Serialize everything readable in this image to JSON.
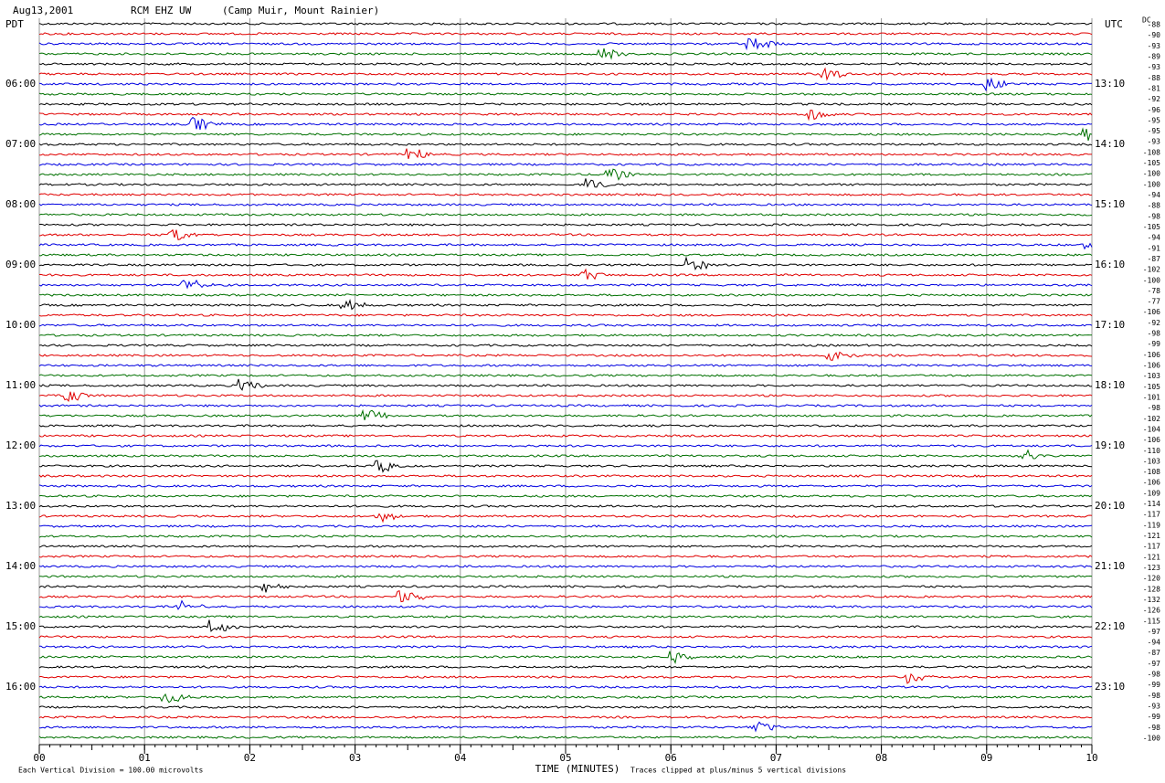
{
  "chart_data": {
    "type": "helicorder",
    "date": "Aug13,2001",
    "station": "RCM EHZ UW",
    "location": "(Camp Muir, Mount Rainier)",
    "left_zone": "PDT",
    "right_zone": "UTC",
    "dc_label": "DC",
    "pdt_times": [
      "06:00",
      "07:00",
      "08:00",
      "09:00",
      "10:00",
      "11:00",
      "12:00",
      "13:00",
      "14:00",
      "15:00",
      "16:00"
    ],
    "utc_times": [
      "13:10",
      "14:10",
      "15:10",
      "16:10",
      "17:10",
      "18:10",
      "19:10",
      "20:10",
      "21:10",
      "22:10",
      "23:10"
    ],
    "dc_offsets": [
      -88,
      -90,
      -93,
      -89,
      -93,
      -88,
      -81,
      -92,
      -96,
      -95,
      -95,
      -93,
      -108,
      -105,
      -100,
      -100,
      -94,
      -88,
      -98,
      -105,
      -94,
      -91,
      -87,
      -102,
      -100,
      -78,
      -77,
      -106,
      -92,
      -98,
      -99,
      -106,
      -106,
      -103,
      -105,
      -101,
      -98,
      -102,
      -104,
      -106,
      -110,
      -103,
      -108,
      -106,
      -109,
      -114,
      -117,
      -119,
      -121,
      -117,
      -121,
      -123,
      -120,
      -128,
      -132,
      -126,
      -115,
      -97,
      -94,
      -87,
      -97,
      -98,
      -99,
      -98,
      -93,
      -99,
      -98,
      -100
    ],
    "trace_colors": [
      "#000000",
      "#e00000",
      "#0000e0",
      "#007000"
    ],
    "xlabel": "TIME (MINUTES)",
    "xlim": [
      0,
      10
    ],
    "xticks": [
      {
        "value": 0,
        "label": "00"
      },
      {
        "value": 1,
        "label": "01"
      },
      {
        "value": 2,
        "label": "02"
      },
      {
        "value": 3,
        "label": "03"
      },
      {
        "value": 4,
        "label": "04"
      },
      {
        "value": 5,
        "label": "05"
      },
      {
        "value": 6,
        "label": "06"
      },
      {
        "value": 7,
        "label": "07"
      },
      {
        "value": 8,
        "label": "08"
      },
      {
        "value": 9,
        "label": "09"
      },
      {
        "value": 10,
        "label": "10"
      }
    ],
    "scale_note": "Each Vertical Division =  100.00 microvolts",
    "clip_note": "Traces clipped at plus/minus 5 vertical divisions"
  }
}
